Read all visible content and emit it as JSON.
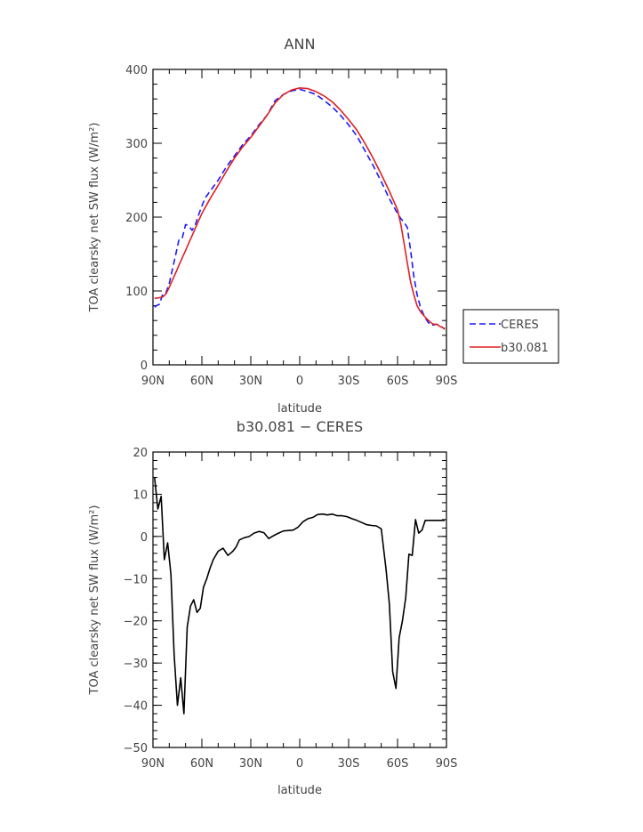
{
  "chart_data": [
    {
      "type": "line",
      "title": "ANN",
      "xlabel": "latitude",
      "ylabel": "TOA clearsky net SW flux (W/m²)",
      "xlim": [
        90,
        -90
      ],
      "ylim": [
        0,
        400
      ],
      "x_ticks": [
        {
          "value": 90,
          "label": "90N"
        },
        {
          "value": 60,
          "label": "60N"
        },
        {
          "value": 30,
          "label": "30N"
        },
        {
          "value": 0,
          "label": "0"
        },
        {
          "value": -30,
          "label": "30S"
        },
        {
          "value": -60,
          "label": "60S"
        },
        {
          "value": -90,
          "label": "90S"
        }
      ],
      "y_ticks": [
        0,
        100,
        200,
        300,
        400
      ],
      "legend": "right",
      "series": [
        {
          "name": "CERES",
          "color": "#1a1aff",
          "dash": "dashed",
          "x": [
            89,
            88,
            86,
            84,
            82,
            80,
            78,
            76,
            74,
            72,
            70,
            68,
            66,
            64,
            62,
            60,
            58,
            55,
            50,
            45,
            40,
            35,
            30,
            25,
            20,
            15,
            10,
            5,
            0,
            -5,
            -10,
            -15,
            -20,
            -25,
            -30,
            -35,
            -40,
            -45,
            -50,
            -55,
            -60,
            -62,
            -64,
            -66,
            -68,
            -70,
            -72,
            -74,
            -76,
            -78,
            -80,
            -82,
            -84,
            -86,
            -88,
            -89
          ],
          "y": [
            78,
            80,
            82,
            96,
            98,
            110,
            130,
            150,
            170,
            172,
            190,
            188,
            182,
            190,
            203,
            215,
            226,
            235,
            250,
            268,
            283,
            298,
            310,
            325,
            338,
            358,
            366,
            371,
            373,
            370,
            366,
            358,
            349,
            338,
            325,
            310,
            290,
            270,
            248,
            225,
            205,
            198,
            193,
            186,
            155,
            120,
            95,
            78,
            68,
            60,
            54,
            54,
            55,
            53,
            50,
            49
          ]
        },
        {
          "name": "b30.081",
          "color": "#e02020",
          "dash": "solid",
          "x": [
            89,
            86,
            84,
            82,
            80,
            78,
            76,
            74,
            72,
            70,
            68,
            66,
            64,
            62,
            60,
            55,
            50,
            45,
            40,
            35,
            30,
            25,
            20,
            15,
            10,
            5,
            0,
            -5,
            -10,
            -15,
            -20,
            -25,
            -30,
            -35,
            -40,
            -45,
            -50,
            -55,
            -60,
            -62,
            -64,
            -66,
            -68,
            -70,
            -72,
            -74,
            -76,
            -78,
            -80,
            -82,
            -84,
            -86,
            -88,
            -89
          ],
          "y": [
            90,
            91,
            92,
            96,
            105,
            115,
            125,
            135,
            145,
            155,
            165,
            175,
            185,
            195,
            205,
            225,
            243,
            262,
            280,
            295,
            308,
            323,
            338,
            355,
            366,
            372,
            375,
            374,
            370,
            364,
            356,
            345,
            332,
            318,
            300,
            280,
            258,
            235,
            210,
            190,
            165,
            138,
            112,
            95,
            80,
            72,
            67,
            62,
            58,
            55,
            55,
            52,
            50,
            48
          ]
        }
      ]
    },
    {
      "type": "line",
      "title": "b30.081 − CERES",
      "xlabel": "latitude",
      "ylabel": "TOA clearsky net SW flux (W/m²)",
      "xlim": [
        90,
        -90
      ],
      "ylim": [
        -50,
        20
      ],
      "x_ticks": [
        {
          "value": 90,
          "label": "90N"
        },
        {
          "value": 60,
          "label": "60N"
        },
        {
          "value": 30,
          "label": "30N"
        },
        {
          "value": 0,
          "label": "0"
        },
        {
          "value": -30,
          "label": "30S"
        },
        {
          "value": -60,
          "label": "60S"
        },
        {
          "value": -90,
          "label": "90S"
        }
      ],
      "y_ticks": [
        -50,
        -40,
        -30,
        -20,
        -10,
        0,
        10,
        20
      ],
      "series": [
        {
          "name": "",
          "color": "#000000",
          "dash": "solid",
          "x": [
            89,
            87,
            85,
            83,
            81,
            79,
            77,
            75,
            73,
            71,
            69,
            67,
            65,
            63,
            61,
            59,
            57,
            55,
            53,
            50,
            47,
            44,
            41,
            39,
            37,
            34,
            31,
            28,
            25,
            22,
            19,
            16,
            13,
            10,
            7,
            4,
            1,
            -2,
            -5,
            -8,
            -11,
            -14,
            -17,
            -20,
            -23,
            -26,
            -29,
            -32,
            -35,
            -38,
            -41,
            -44,
            -47,
            -50,
            -53,
            -55,
            -57,
            -59,
            -61,
            -63,
            -65,
            -67,
            -69,
            -71,
            -73,
            -75,
            -77,
            -79,
            -81,
            -83,
            -85,
            -87,
            -89
          ],
          "y": [
            14,
            6.5,
            9.5,
            -5.5,
            -1.5,
            -9,
            -28,
            -40,
            -33.5,
            -42,
            -21.5,
            -16.5,
            -15,
            -18,
            -17,
            -12,
            -10,
            -7.5,
            -5.5,
            -3.5,
            -2.8,
            -4.5,
            -3.5,
            -2.5,
            -0.8,
            -0.3,
            0,
            0.8,
            1.2,
            0.9,
            -0.5,
            0.2,
            0.8,
            1.3,
            1.4,
            1.5,
            2.2,
            3.5,
            4.2,
            4.5,
            5.2,
            5.3,
            5.1,
            5.3,
            4.9,
            4.9,
            4.7,
            4.2,
            3.8,
            3.3,
            2.8,
            2.6,
            2.5,
            1.8,
            -8,
            -16,
            -32,
            -36,
            -24,
            -20,
            -14.5,
            -4.2,
            -4.5,
            4,
            0.8,
            1.5,
            3.8,
            3.8,
            3.8,
            3.8,
            3.8,
            3.8,
            3.8
          ]
        }
      ]
    }
  ]
}
